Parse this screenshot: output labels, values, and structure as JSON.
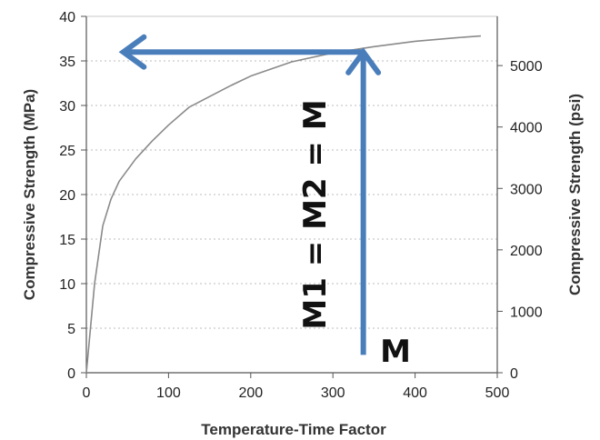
{
  "chart_data": {
    "type": "line",
    "xlabel": "Temperature-Time Factor",
    "ylabel": "Compressive Strength (MPa)",
    "y2label": "Compressive Strength (psi)",
    "xlim": [
      0,
      500
    ],
    "ylim": [
      0,
      40
    ],
    "y2lim": [
      0,
      5801
    ],
    "x_ticks": [
      0,
      100,
      200,
      300,
      400,
      500
    ],
    "y_ticks": [
      0,
      5,
      10,
      15,
      20,
      25,
      30,
      35,
      40
    ],
    "y2_ticks": [
      0,
      1000,
      2000,
      3000,
      4000,
      5000
    ],
    "grid": true,
    "series": [
      {
        "x": [
          0,
          10,
          20,
          30,
          40,
          60,
          80,
          100,
          125,
          150,
          175,
          200,
          250,
          300,
          350,
          400,
          450,
          480
        ],
        "y": [
          0,
          10,
          16.5,
          19.5,
          21.5,
          24,
          26,
          27.8,
          29.8,
          31,
          32.2,
          33.3,
          34.9,
          35.9,
          36.6,
          37.2,
          37.6,
          37.8
        ]
      }
    ],
    "arrows": [
      {
        "from": [
          337,
          2
        ],
        "to": [
          337,
          36
        ]
      },
      {
        "from": [
          337,
          36
        ],
        "to": [
          45,
          36
        ]
      }
    ],
    "annotations": [
      {
        "text": "M1 = M2 = M"
      },
      {
        "text": "M"
      }
    ],
    "colors": {
      "curve": "#8a8a8a",
      "arrow": "#4a7ebb",
      "grid": "#bdbdbd"
    }
  }
}
